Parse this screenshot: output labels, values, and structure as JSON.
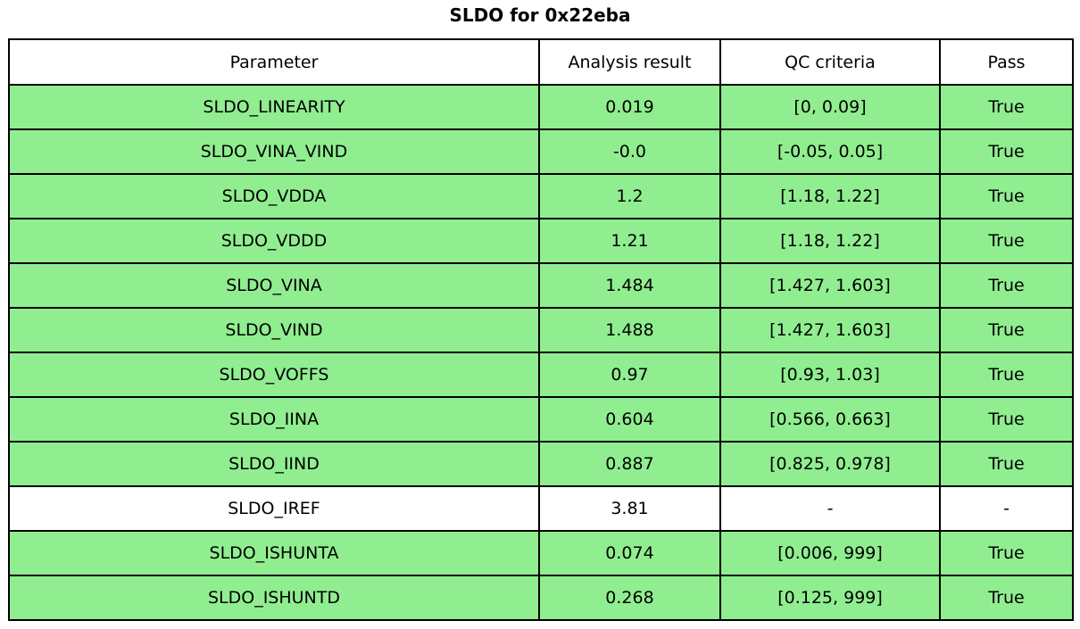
{
  "title": "SLDO for 0x22eba",
  "colors": {
    "pass_row_background": "#90ee90",
    "neutral_row_background": "#ffffff",
    "border": "#000000",
    "text": "#000000"
  },
  "chart_data": {
    "type": "table",
    "title": "SLDO for 0x22eba",
    "columns": [
      "Parameter",
      "Analysis result",
      "QC criteria",
      "Pass"
    ],
    "rows": [
      {
        "parameter": "SLDO_LINEARITY",
        "analysis_result": "0.019",
        "qc_criteria": "[0, 0.09]",
        "pass": "True",
        "state": "pass"
      },
      {
        "parameter": "SLDO_VINA_VIND",
        "analysis_result": "-0.0",
        "qc_criteria": "[-0.05, 0.05]",
        "pass": "True",
        "state": "pass"
      },
      {
        "parameter": "SLDO_VDDA",
        "analysis_result": "1.2",
        "qc_criteria": "[1.18, 1.22]",
        "pass": "True",
        "state": "pass"
      },
      {
        "parameter": "SLDO_VDDD",
        "analysis_result": "1.21",
        "qc_criteria": "[1.18, 1.22]",
        "pass": "True",
        "state": "pass"
      },
      {
        "parameter": "SLDO_VINA",
        "analysis_result": "1.484",
        "qc_criteria": "[1.427, 1.603]",
        "pass": "True",
        "state": "pass"
      },
      {
        "parameter": "SLDO_VIND",
        "analysis_result": "1.488",
        "qc_criteria": "[1.427, 1.603]",
        "pass": "True",
        "state": "pass"
      },
      {
        "parameter": "SLDO_VOFFS",
        "analysis_result": "0.97",
        "qc_criteria": "[0.93, 1.03]",
        "pass": "True",
        "state": "pass"
      },
      {
        "parameter": "SLDO_IINA",
        "analysis_result": "0.604",
        "qc_criteria": "[0.566, 0.663]",
        "pass": "True",
        "state": "pass"
      },
      {
        "parameter": "SLDO_IIND",
        "analysis_result": "0.887",
        "qc_criteria": "[0.825, 0.978]",
        "pass": "True",
        "state": "pass"
      },
      {
        "parameter": "SLDO_IREF",
        "analysis_result": "3.81",
        "qc_criteria": "-",
        "pass": "-",
        "state": "neutral"
      },
      {
        "parameter": "SLDO_ISHUNTA",
        "analysis_result": "0.074",
        "qc_criteria": "[0.006, 999]",
        "pass": "True",
        "state": "pass"
      },
      {
        "parameter": "SLDO_ISHUNTD",
        "analysis_result": "0.268",
        "qc_criteria": "[0.125, 999]",
        "pass": "True",
        "state": "pass"
      }
    ]
  }
}
